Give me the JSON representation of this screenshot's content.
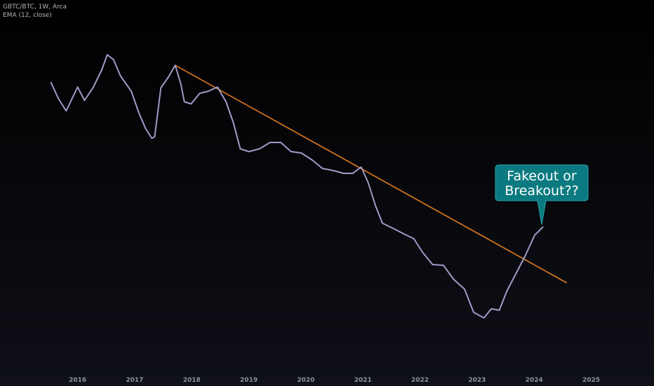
{
  "chart_data": {
    "type": "line",
    "title": "GBTC/BTC, 1W, Arca",
    "subtitle": "EMA (12, close)",
    "annotation": [
      "Fakeout or",
      "Breakout??"
    ],
    "x": [
      2015.53,
      2015.66,
      2015.8,
      2016.0,
      2016.12,
      2016.27,
      2016.42,
      2016.52,
      2016.63,
      2016.75,
      2016.94,
      2017.07,
      2017.19,
      2017.3,
      2017.35,
      2017.46,
      2017.59,
      2017.71,
      2017.81,
      2017.87,
      2017.99,
      2018.14,
      2018.29,
      2018.45,
      2018.6,
      2018.73,
      2018.85,
      2019.0,
      2019.19,
      2019.37,
      2019.56,
      2019.74,
      2019.92,
      2020.11,
      2020.29,
      2020.48,
      2020.66,
      2020.82,
      2020.97,
      2021.09,
      2021.22,
      2021.34,
      2021.52,
      2021.71,
      2021.89,
      2022.05,
      2022.22,
      2022.41,
      2022.59,
      2022.78,
      2022.94,
      2023.12,
      2023.25,
      2023.39,
      2023.52,
      2023.68,
      2023.84,
      2024.01,
      2024.16
    ],
    "series": [
      {
        "name": "EMA (12, close)",
        "color": "#9f9ac6",
        "values": [
          413,
          390,
          372,
          406,
          387,
          405,
          430,
          452,
          445,
          422,
          400,
          370,
          347,
          333,
          335,
          405,
          420,
          437,
          410,
          385,
          382,
          397,
          400,
          406,
          385,
          355,
          318,
          314,
          318,
          327,
          327,
          314,
          312,
          302,
          290,
          287,
          283,
          283,
          292,
          270,
          237,
          212,
          205,
          197,
          190,
          170,
          153,
          152,
          132,
          118,
          85,
          77,
          90,
          88,
          115,
          140,
          165,
          195,
          207
        ]
      }
    ],
    "trendline": {
      "x": [
        2017.71,
        2024.57
      ],
      "values": [
        437,
        127
      ],
      "color": "#e07a1f"
    },
    "xlim": [
      2014.64,
      2026.1
    ],
    "xticks": [
      2016,
      2017,
      2018,
      2019,
      2020,
      2021,
      2022,
      2023,
      2024,
      2025
    ],
    "ylim": [
      0,
      530
    ]
  }
}
